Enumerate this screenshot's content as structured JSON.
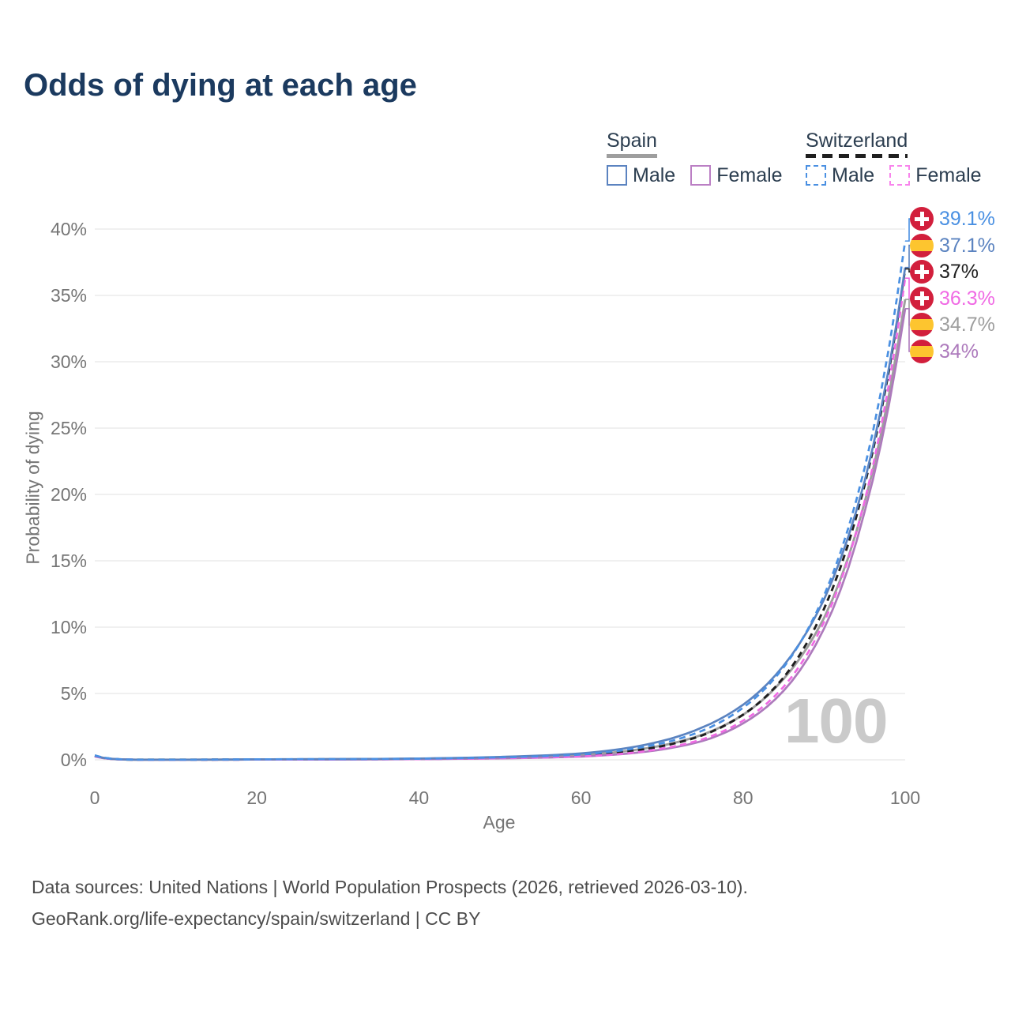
{
  "footer": {
    "line1": "Data sources: United Nations | World Population Prospects (2026, retrieved 2026-03-10).",
    "line2": "GeoRank.org/life-expectancy/spain/switzerland | CC BY"
  },
  "legend": {
    "groups": [
      {
        "name": "Spain",
        "line_style": "solid",
        "underline_color": "#9e9e9e",
        "items": [
          {
            "label": "Male",
            "color": "#5b83c0"
          },
          {
            "label": "Female",
            "color": "#bb7fc4"
          }
        ]
      },
      {
        "name": "Switzerland",
        "line_style": "dashed",
        "underline_color": "#1f1f1f",
        "items": [
          {
            "label": "Male",
            "color": "#4a90e2"
          },
          {
            "label": "Female",
            "color": "#f884ec"
          }
        ]
      }
    ]
  },
  "chart_data": {
    "type": "line",
    "title": "Odds of dying at each age",
    "xlabel": "Age",
    "ylabel": "Probability of dying",
    "x_ticks": [
      0,
      20,
      40,
      60,
      80,
      100
    ],
    "y_ticks": [
      "0%",
      "5%",
      "10%",
      "15%",
      "20%",
      "25%",
      "30%",
      "35%",
      "40%"
    ],
    "xlim": [
      0,
      100
    ],
    "ylim_percent": [
      0,
      40
    ],
    "grid": true,
    "legend_position": "top-right",
    "age_cursor_label": "100",
    "sample_ages": [
      0,
      5,
      10,
      15,
      20,
      25,
      30,
      35,
      40,
      45,
      50,
      55,
      60,
      65,
      70,
      75,
      80,
      85,
      90,
      95,
      100
    ],
    "series": [
      {
        "name": "Spain total",
        "country": "Spain",
        "sex": "total",
        "color": "#9e9e9e",
        "dashed": false,
        "flag": "spain",
        "end_label": "34.7%",
        "end_value": 34.7,
        "values_percent": [
          0.28,
          0.01,
          0.009,
          0.014,
          0.028,
          0.035,
          0.043,
          0.052,
          0.072,
          0.11,
          0.16,
          0.235,
          0.36,
          0.62,
          1.08,
          1.9,
          3.4,
          6.1,
          10.7,
          19.4,
          34.7
        ]
      },
      {
        "name": "Switzerland total",
        "country": "Switzerland",
        "sex": "total",
        "color": "#1f1f1f",
        "dashed": true,
        "flag": "switzerland",
        "end_label": "37%",
        "end_value": 37.0,
        "values_percent": [
          0.31,
          0.01,
          0.009,
          0.015,
          0.028,
          0.035,
          0.042,
          0.05,
          0.068,
          0.1,
          0.15,
          0.215,
          0.325,
          0.57,
          1.03,
          1.85,
          3.4,
          6.2,
          11.4,
          20.7,
          37.0
        ]
      },
      {
        "name": "Spain female",
        "country": "Spain",
        "sex": "female",
        "color": "#ad7abc",
        "dashed": false,
        "flag": "spain",
        "end_label": "34%",
        "end_value": 34.0,
        "values_percent": [
          0.25,
          0.009,
          0.008,
          0.011,
          0.018,
          0.022,
          0.028,
          0.035,
          0.05,
          0.075,
          0.11,
          0.16,
          0.245,
          0.43,
          0.78,
          1.42,
          2.75,
          5.2,
          9.9,
          18.7,
          34.0
        ]
      },
      {
        "name": "Switzerland female",
        "country": "Switzerland",
        "sex": "female",
        "color": "#f06ae4",
        "dashed": true,
        "flag": "switzerland",
        "end_label": "36.3%",
        "end_value": 36.3,
        "values_percent": [
          0.28,
          0.009,
          0.008,
          0.012,
          0.02,
          0.025,
          0.032,
          0.04,
          0.055,
          0.082,
          0.12,
          0.17,
          0.255,
          0.45,
          0.85,
          1.55,
          2.95,
          5.5,
          10.4,
          19.5,
          36.3
        ]
      },
      {
        "name": "Spain male",
        "country": "Spain",
        "sex": "male",
        "color": "#5b83c0",
        "dashed": false,
        "flag": "spain",
        "end_label": "37.1%",
        "end_value": 37.1,
        "values_percent": [
          0.31,
          0.012,
          0.01,
          0.02,
          0.04,
          0.05,
          0.06,
          0.072,
          0.1,
          0.15,
          0.22,
          0.32,
          0.48,
          0.82,
          1.42,
          2.45,
          4.15,
          7.1,
          12.1,
          21.0,
          37.1
        ]
      },
      {
        "name": "Switzerland male",
        "country": "Switzerland",
        "sex": "male",
        "color": "#4a90e2",
        "dashed": true,
        "flag": "switzerland",
        "end_label": "39.1%",
        "end_value": 39.1,
        "values_percent": [
          0.34,
          0.012,
          0.01,
          0.018,
          0.035,
          0.045,
          0.05,
          0.06,
          0.082,
          0.12,
          0.18,
          0.26,
          0.4,
          0.71,
          1.25,
          2.2,
          3.92,
          6.97,
          12.4,
          22.0,
          39.1
        ]
      }
    ]
  }
}
